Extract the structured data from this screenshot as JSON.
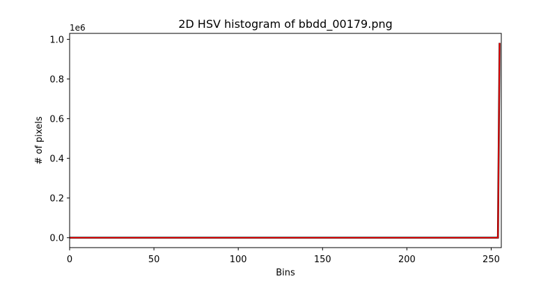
{
  "chart_data": {
    "type": "line",
    "title": "2D HSV histogram of bbdd_00179.png",
    "xlabel": "Bins",
    "ylabel": "# of pixels",
    "offset_text": "1e6",
    "xlim": [
      0,
      256
    ],
    "ylim": [
      -50000,
      1030000
    ],
    "x_ticks": [
      0,
      50,
      100,
      150,
      200,
      250
    ],
    "x_tick_labels": [
      "0",
      "50",
      "100",
      "150",
      "200",
      "250"
    ],
    "y_ticks": [
      0,
      200000,
      400000,
      600000,
      800000,
      1000000
    ],
    "y_tick_labels": [
      "0.0",
      "0.2",
      "0.4",
      "0.6",
      "0.8",
      "1.0"
    ],
    "grid": false,
    "legend": "none",
    "series": [
      {
        "color": "#000000",
        "x": [
          0,
          254,
          255
        ],
        "values": [
          0,
          0,
          982000
        ]
      },
      {
        "color": "#ff0000",
        "x": [
          0,
          254,
          255
        ],
        "values": [
          0,
          0,
          982000
        ]
      }
    ]
  }
}
